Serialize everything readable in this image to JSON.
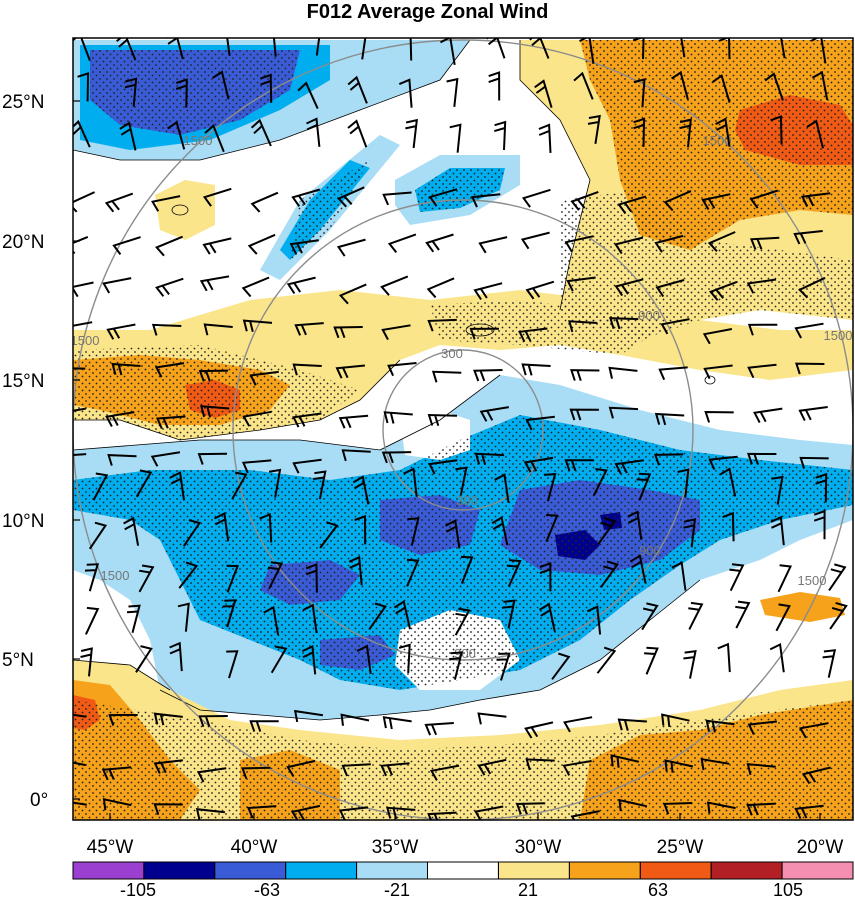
{
  "title": "F012 Average Zonal Wind",
  "map": {
    "lat_labels": [
      "25°N",
      "20°N",
      "15°N",
      "10°N",
      "5°N",
      "0°"
    ],
    "lon_labels": [
      "45°W",
      "40°W",
      "35°W",
      "30°W",
      "25°W",
      "20°W"
    ],
    "ring_labels": [
      "300",
      "300",
      "900",
      "900",
      "900",
      "1500",
      "1500",
      "1500",
      "1500",
      "1500",
      "1500"
    ]
  },
  "colorbar": {
    "labels": [
      "-105",
      "-63",
      "-21",
      "21",
      "63",
      "105"
    ],
    "colors": [
      "#9a3fd0",
      "#00008f",
      "#3a5bd6",
      "#00aeef",
      "#a8ddf5",
      "#ffffff",
      "#fbe58a",
      "#f7a21b",
      "#f05a14",
      "#b21f24",
      "#f48fb1"
    ]
  },
  "palette": {
    "very_negative": "#3a5bd6",
    "negative": "#00aeef",
    "weak_negative": "#a8ddf5",
    "weak_positive": "#fbe58a",
    "positive": "#f7a21b",
    "strong_positive": "#f05a14",
    "extreme_negative": "#00008f"
  }
}
